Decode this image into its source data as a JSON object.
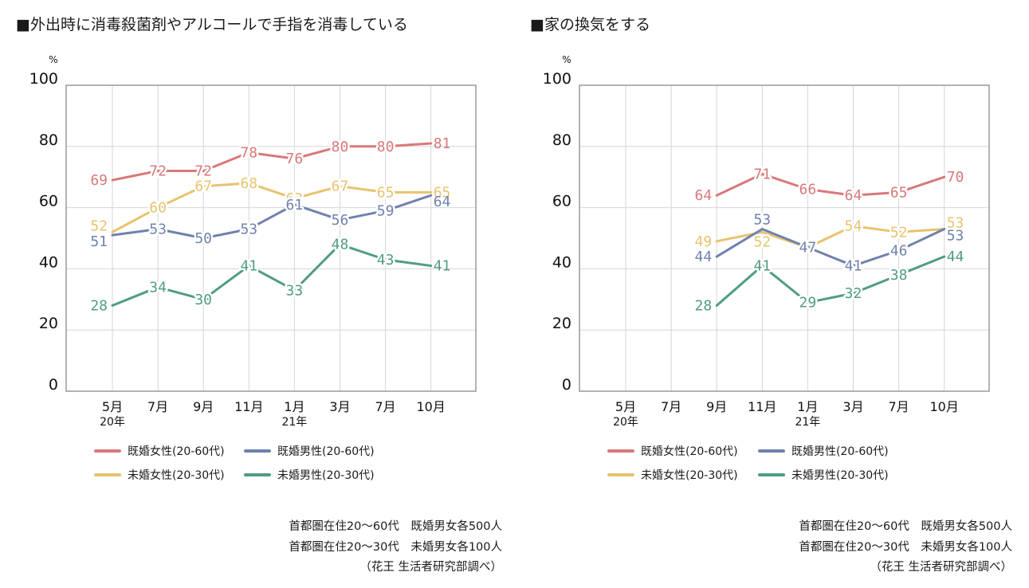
{
  "chart_data": [
    {
      "type": "line",
      "title": "■外出時に消毒殺菌剤やアルコールで手指を消毒している",
      "ylabel": "%",
      "xlabel": "",
      "ylim": [
        0,
        100
      ],
      "yticks": [
        0,
        20,
        40,
        60,
        80,
        100
      ],
      "grid": true,
      "categories": [
        "5月",
        "7月",
        "9月",
        "11月",
        "1月",
        "3月",
        "7月",
        "10月"
      ],
      "year_labels": {
        "0": "20年",
        "4": "21年"
      },
      "series": [
        {
          "name": "既婚女性(20-60代)",
          "color": "#d9787a",
          "values": [
            69,
            72,
            72,
            78,
            76,
            80,
            80,
            81
          ]
        },
        {
          "name": "未婚女性(20-30代)",
          "color": "#e8c36e",
          "values": [
            52,
            60,
            67,
            68,
            63,
            67,
            65,
            65
          ]
        },
        {
          "name": "既婚男性(20-60代)",
          "color": "#6f82ad",
          "values": [
            51,
            53,
            50,
            53,
            61,
            56,
            59,
            64
          ]
        },
        {
          "name": "未婚男性(20-30代)",
          "color": "#4f9c84",
          "values": [
            28,
            34,
            30,
            41,
            33,
            48,
            43,
            41
          ]
        }
      ],
      "legend": "bottom",
      "notes": [
        "首都圏在住20～60代　既婚男女各500人",
        "首都圏在住20～30代　未婚男女各100人",
        "（花王 生活者研究部調べ）"
      ]
    },
    {
      "type": "line",
      "title": "■家の換気をする",
      "ylabel": "%",
      "xlabel": "",
      "ylim": [
        0,
        100
      ],
      "yticks": [
        0,
        20,
        40,
        60,
        80,
        100
      ],
      "grid": true,
      "categories": [
        "5月",
        "7月",
        "9月",
        "11月",
        "1月",
        "3月",
        "7月",
        "10月"
      ],
      "year_labels": {
        "0": "20年",
        "4": "21年"
      },
      "series": [
        {
          "name": "既婚女性(20-60代)",
          "color": "#d9787a",
          "values": [
            null,
            null,
            64,
            71,
            66,
            64,
            65,
            70
          ]
        },
        {
          "name": "未婚女性(20-30代)",
          "color": "#e8c36e",
          "values": [
            null,
            null,
            49,
            52,
            47,
            54,
            52,
            53
          ]
        },
        {
          "name": "既婚男性(20-60代)",
          "color": "#6f82ad",
          "values": [
            null,
            null,
            44,
            53,
            47,
            41,
            46,
            53
          ]
        },
        {
          "name": "未婚男性(20-30代)",
          "color": "#4f9c84",
          "values": [
            null,
            null,
            28,
            41,
            29,
            32,
            38,
            44
          ]
        }
      ],
      "legend": "bottom",
      "notes": [
        "首都圏在住20～60代　既婚男女各500人",
        "首都圏在住20～30代　未婚男女各100人",
        "（花王 生活者研究部調べ）"
      ]
    }
  ],
  "legend_items": [
    {
      "name": "既婚女性(20-60代)",
      "color": "#d9787a"
    },
    {
      "name": "既婚男性(20-60代)",
      "color": "#6f82ad"
    },
    {
      "name": "未婚女性(20-30代)",
      "color": "#e8c36e"
    },
    {
      "name": "未婚男性(20-30代)",
      "color": "#4f9c84"
    }
  ]
}
